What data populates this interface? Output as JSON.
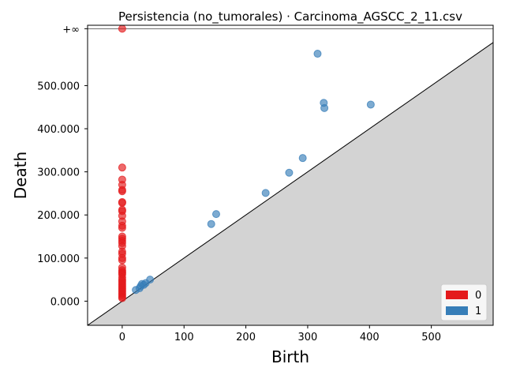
{
  "chart_data": {
    "type": "scatter",
    "title": "Persistencia (no_tumorales) · Carcinoma_AGSCC_2_11.csv",
    "xlabel": "Birth",
    "ylabel": "Death",
    "xlim": [
      -56,
      600
    ],
    "ylim": [
      -56,
      640
    ],
    "xticks": [
      {
        "value": 0,
        "label": "0"
      },
      {
        "value": 100,
        "label": "100"
      },
      {
        "value": 200,
        "label": "200"
      },
      {
        "value": 300,
        "label": "300"
      },
      {
        "value": 400,
        "label": "400"
      },
      {
        "value": 500,
        "label": "500"
      }
    ],
    "yticks": [
      {
        "value": 0,
        "label": "0.000"
      },
      {
        "value": 100,
        "label": "100.000"
      },
      {
        "value": 200,
        "label": "200.000"
      },
      {
        "value": 300,
        "label": "300.000"
      },
      {
        "value": 400,
        "label": "400.000"
      },
      {
        "value": 500,
        "label": "500.000"
      }
    ],
    "infinity": {
      "label": "+∞",
      "value": 632
    },
    "diagonal": true,
    "grid": false,
    "legend_position": "bottom-right",
    "series": [
      {
        "name": "0",
        "color": "#e41a1c",
        "points": [
          [
            0,
            632
          ],
          [
            0,
            310
          ],
          [
            0,
            282
          ],
          [
            0,
            270
          ],
          [
            0,
            258
          ],
          [
            0,
            255
          ],
          [
            0,
            230
          ],
          [
            0,
            228
          ],
          [
            0,
            212
          ],
          [
            0,
            209
          ],
          [
            0,
            198
          ],
          [
            0,
            185
          ],
          [
            0,
            175
          ],
          [
            0,
            170
          ],
          [
            0,
            150
          ],
          [
            0,
            145
          ],
          [
            0,
            140
          ],
          [
            0,
            135
          ],
          [
            0,
            128
          ],
          [
            0,
            115
          ],
          [
            0,
            110
          ],
          [
            0,
            100
          ],
          [
            0,
            95
          ],
          [
            0,
            78
          ],
          [
            0,
            72
          ],
          [
            0,
            68
          ],
          [
            0,
            65
          ],
          [
            0,
            62
          ],
          [
            0,
            55
          ],
          [
            0,
            50
          ],
          [
            0,
            46
          ],
          [
            0,
            42
          ],
          [
            0,
            38
          ],
          [
            0,
            34
          ],
          [
            0,
            30
          ],
          [
            0,
            26
          ],
          [
            0,
            22
          ],
          [
            0,
            18
          ],
          [
            0,
            14
          ],
          [
            0,
            10
          ],
          [
            0,
            7
          ]
        ]
      },
      {
        "name": "1",
        "color": "#377eb8",
        "points": [
          [
            316,
            574
          ],
          [
            326,
            460
          ],
          [
            327,
            448
          ],
          [
            402,
            456
          ],
          [
            292,
            332
          ],
          [
            270,
            298
          ],
          [
            232,
            251
          ],
          [
            152,
            202
          ],
          [
            144,
            179
          ],
          [
            45,
            50
          ],
          [
            38,
            42
          ],
          [
            35,
            38
          ],
          [
            32,
            40
          ],
          [
            30,
            35
          ],
          [
            28,
            30
          ],
          [
            22,
            26
          ]
        ]
      }
    ]
  }
}
